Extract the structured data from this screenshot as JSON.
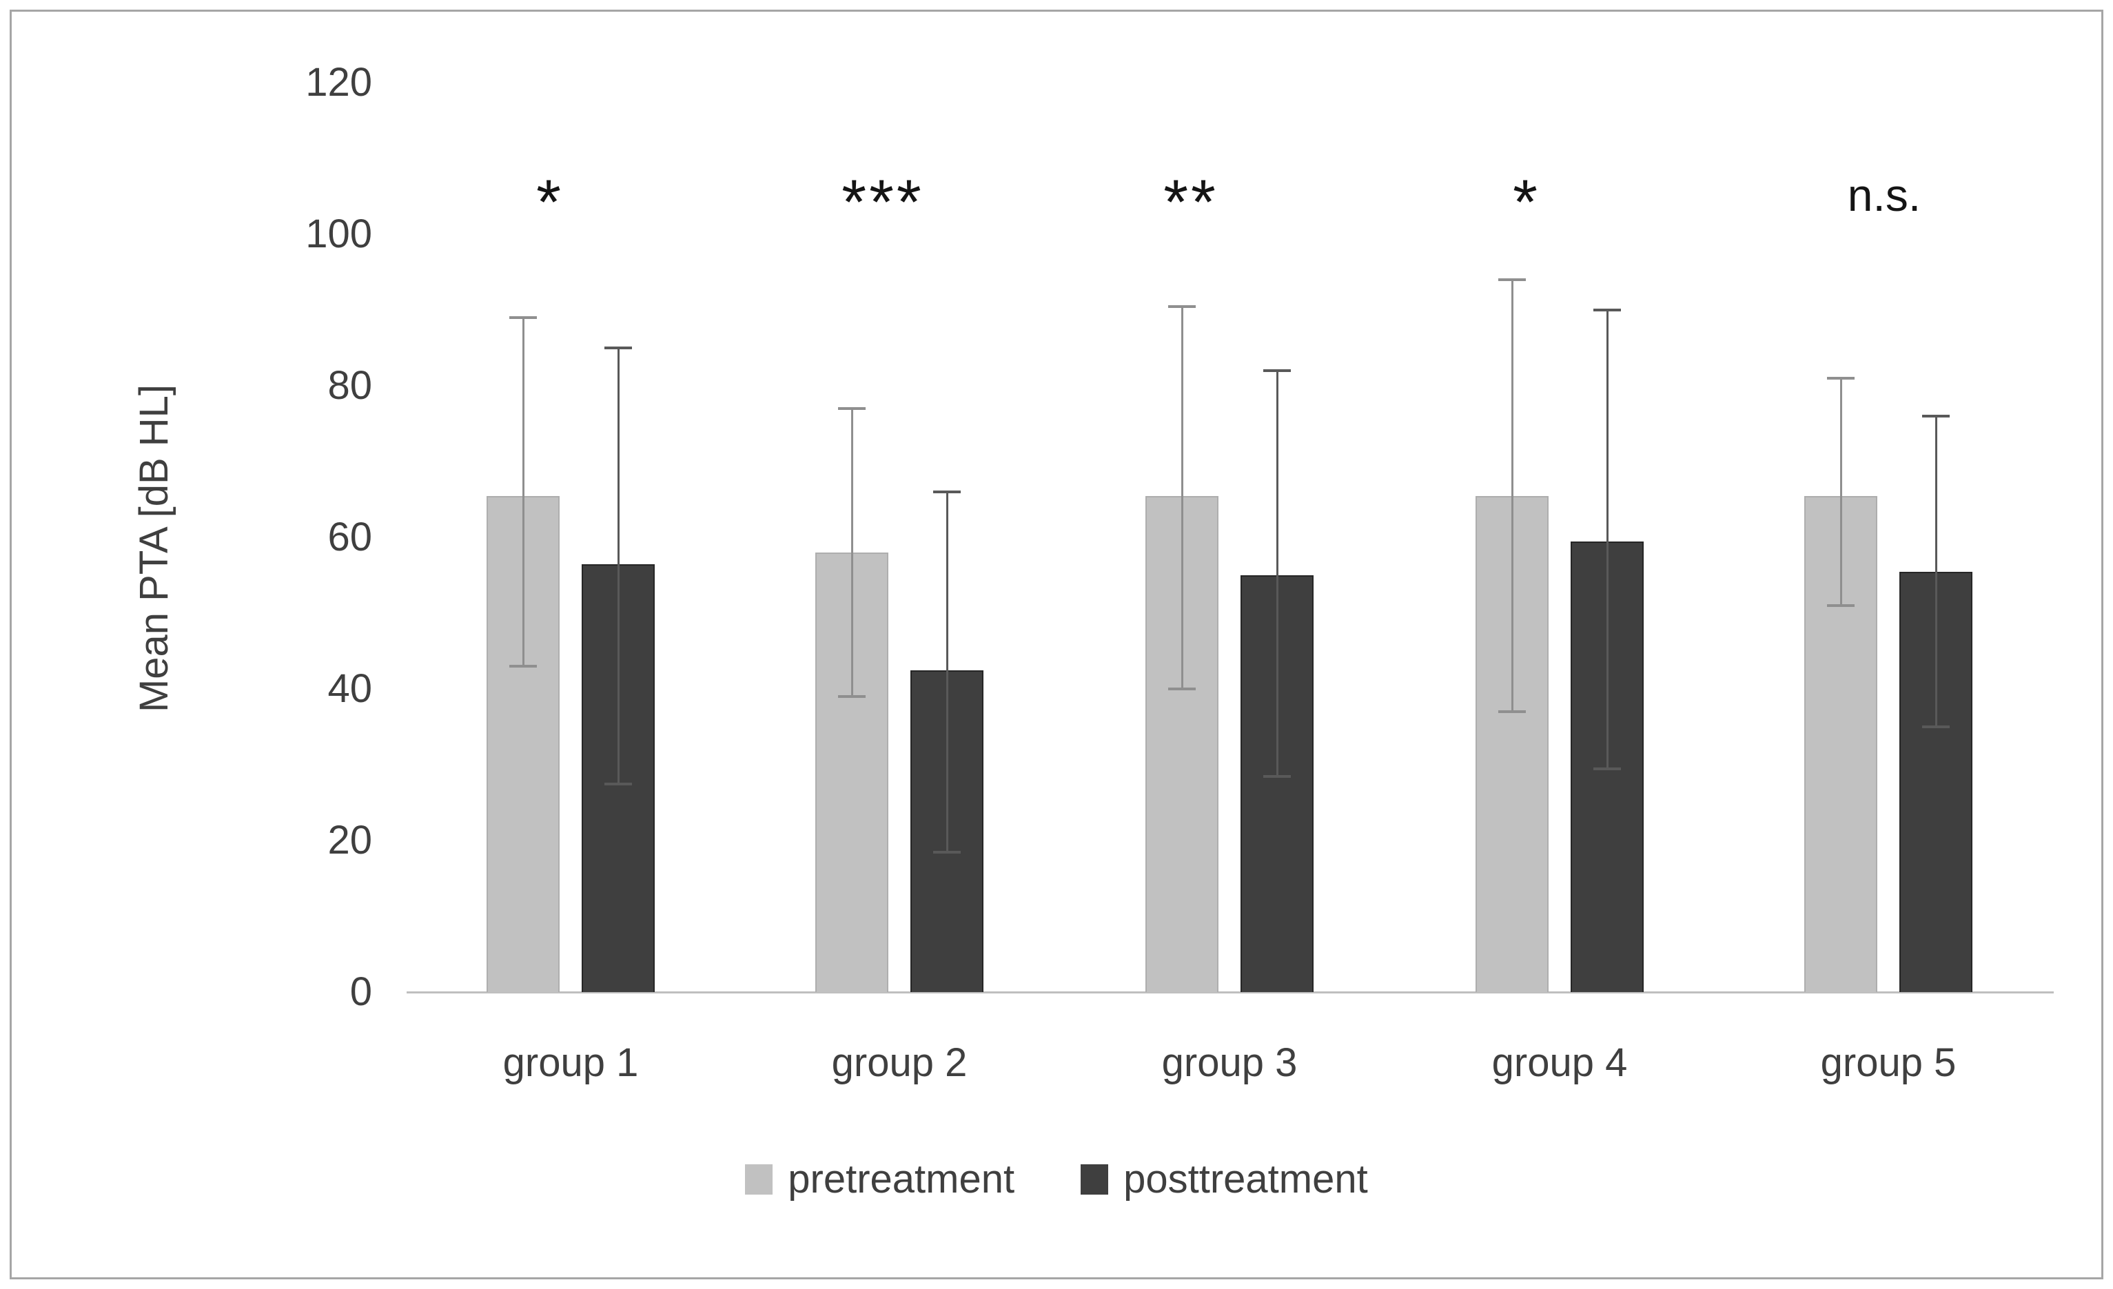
{
  "chart_data": {
    "type": "bar",
    "title": "",
    "xlabel": "",
    "ylabel": "Mean PTA [dB HL]",
    "ylim": [
      0,
      120
    ],
    "yticks": [
      0,
      20,
      40,
      60,
      80,
      100,
      120
    ],
    "grid": false,
    "legend_position": "bottom-center",
    "categories": [
      "group 1",
      "group 2",
      "group 3",
      "group 4",
      "group 5"
    ],
    "series": [
      {
        "name": "pretreatment",
        "values": [
          65.5,
          58,
          65.5,
          65.5,
          65.5
        ],
        "error_high": [
          89,
          77,
          90.5,
          94,
          81
        ],
        "error_low": [
          43,
          39,
          40,
          37,
          51
        ],
        "bar_color": "#c1c1c1",
        "bar_border_color": "#aeaeae",
        "error_color": "#8f8f8f"
      },
      {
        "name": "posttreatment",
        "values": [
          56.5,
          42.5,
          55,
          59.5,
          55.5
        ],
        "error_high": [
          85,
          66,
          82,
          90,
          76
        ],
        "error_low": [
          27.5,
          18.5,
          28.5,
          29.5,
          35
        ],
        "bar_color": "#3f3f3f",
        "bar_border_color": "#262626",
        "error_color": "#595959"
      }
    ],
    "significance_labels": [
      "*",
      "***",
      "**",
      "*",
      "n.s."
    ],
    "annotation_note": "per-group significance markers shown above bar pairs"
  },
  "figure": {
    "axis_text_color": "#3f3f3f",
    "axis_line_color": "#bfbfbf",
    "frame_border_color": "#a6a6a6",
    "background_color": "#ffffff"
  }
}
